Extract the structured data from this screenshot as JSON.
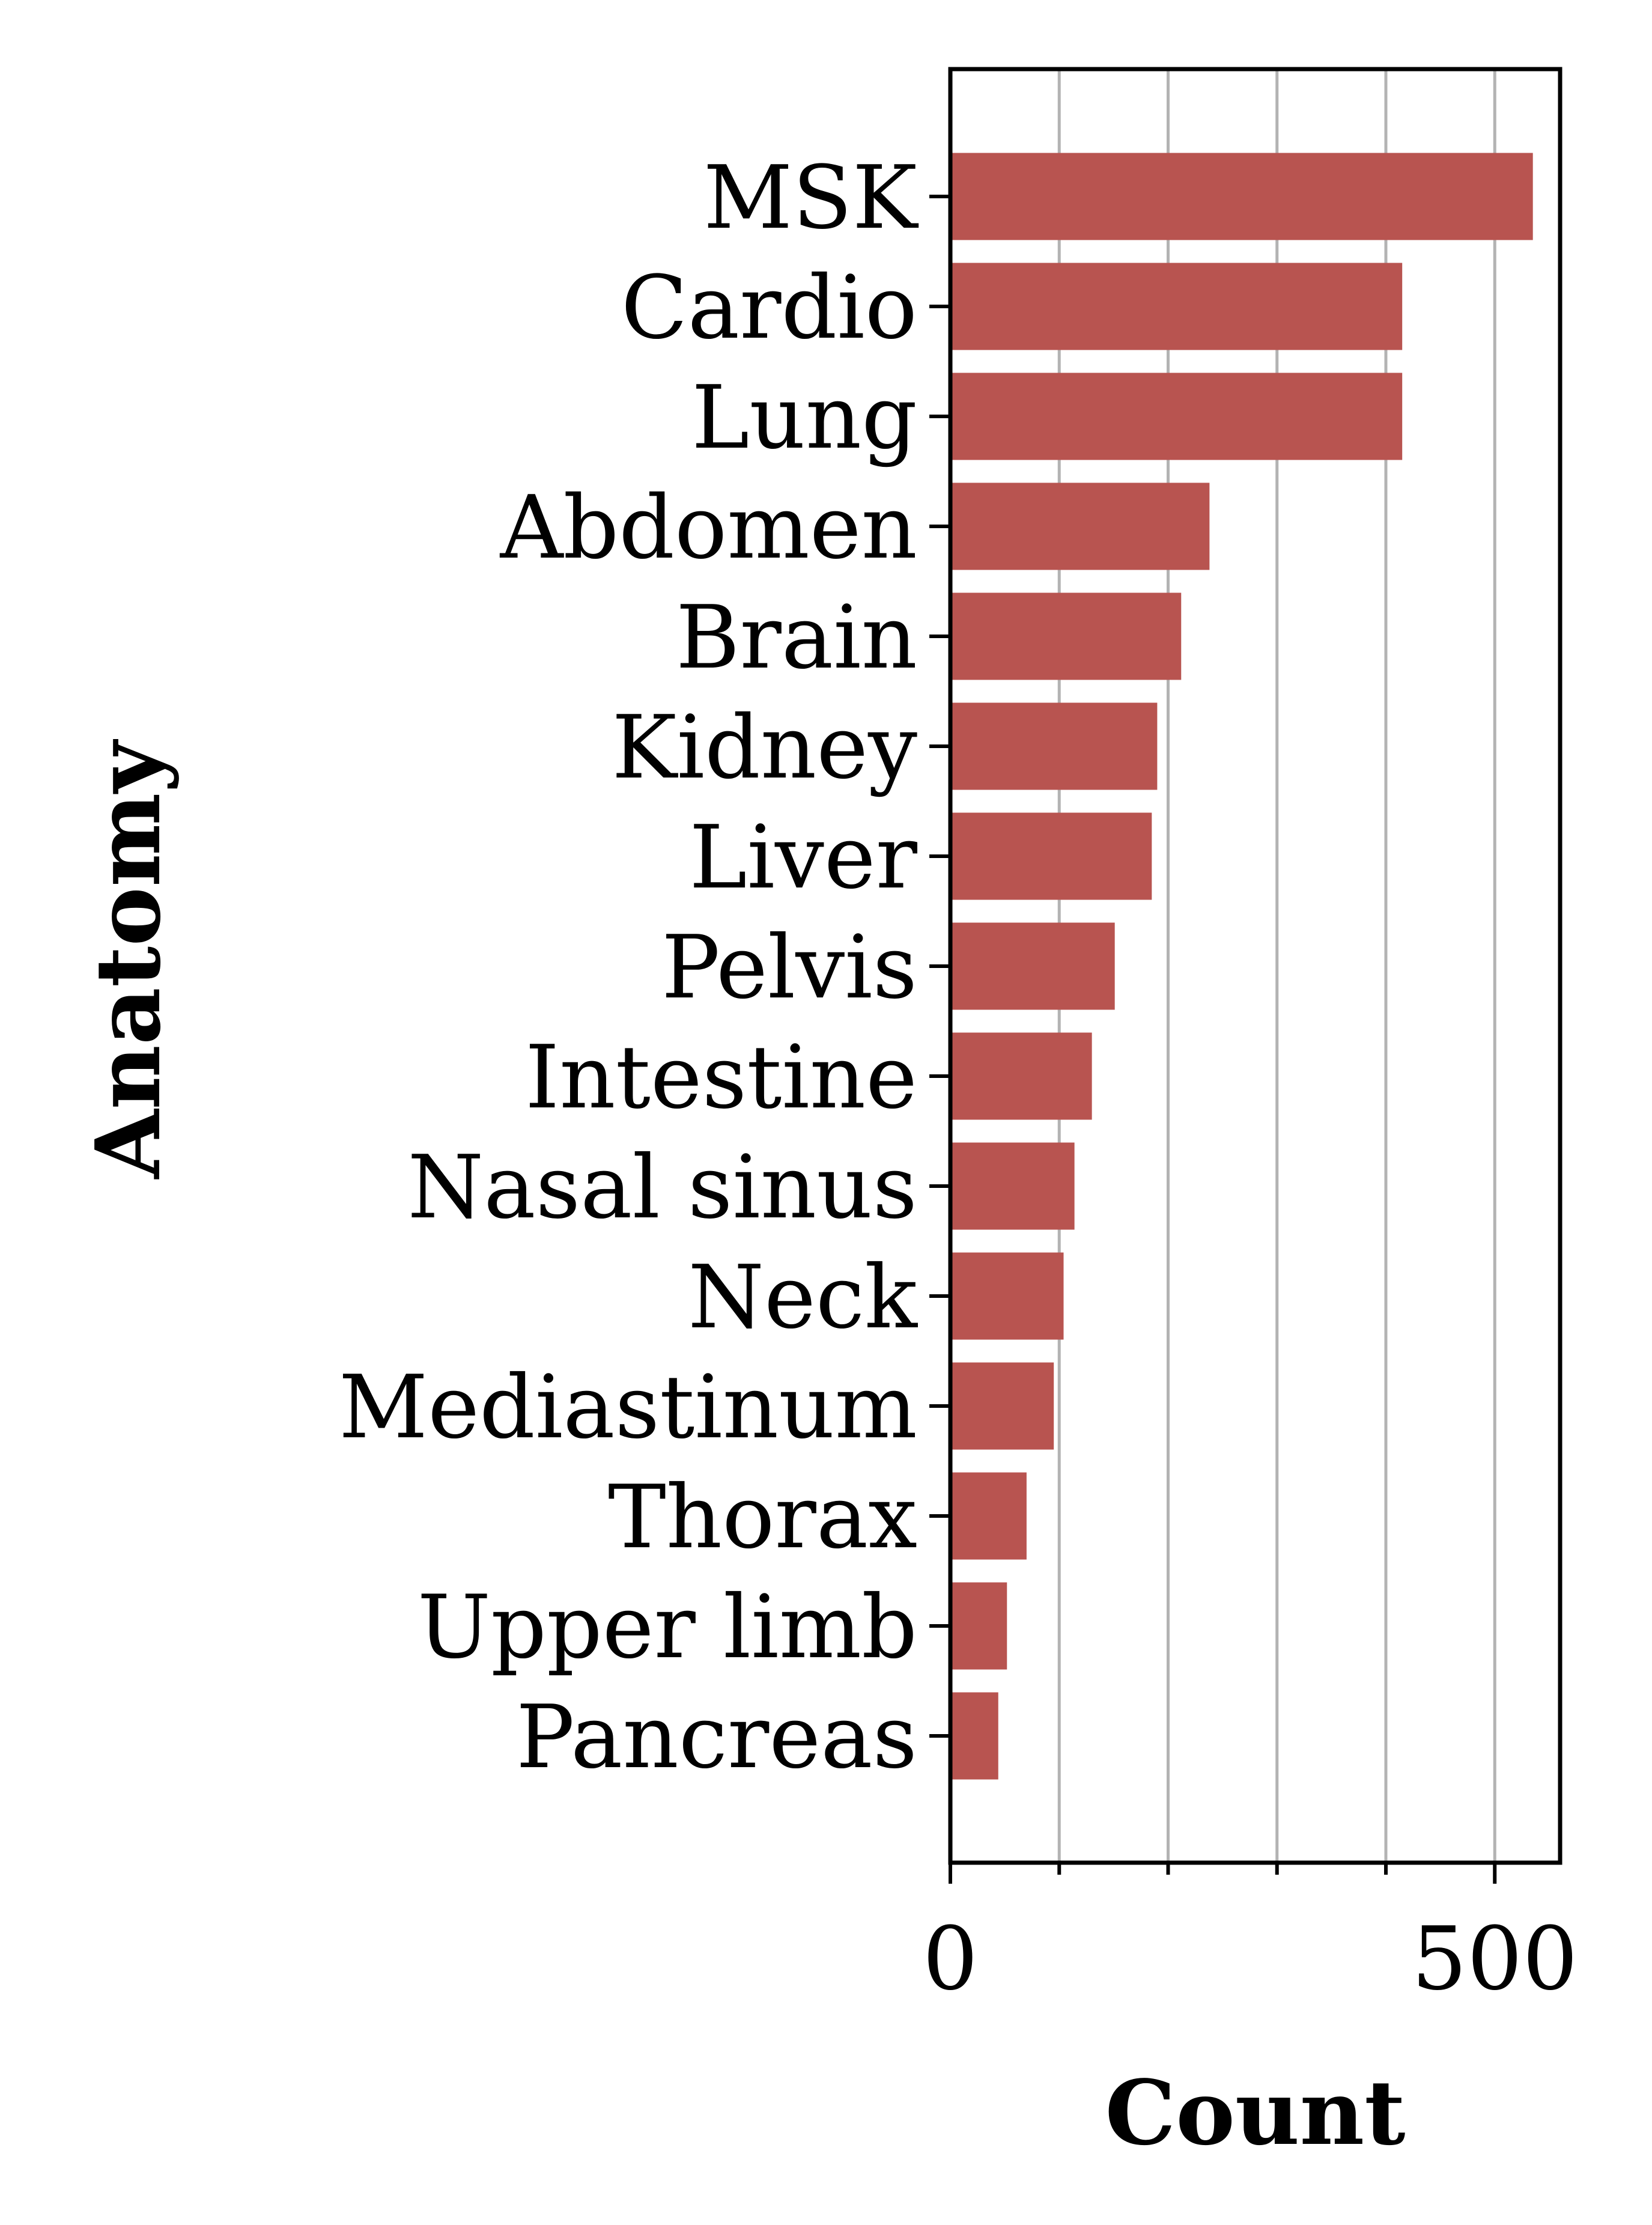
{
  "chart_data": {
    "type": "bar",
    "orientation": "horizontal",
    "title": "",
    "xlabel": "Count",
    "ylabel": "Anatomy",
    "categories": [
      "MSK",
      "Cardio",
      "Lung",
      "Abdomen",
      "Brain",
      "Kidney",
      "Liver",
      "Pelvis",
      "Intestine",
      "Nasal sinus",
      "Neck",
      "Mediastinum",
      "Thorax",
      "Upper limb",
      "Pancreas"
    ],
    "values": [
      535,
      415,
      415,
      238,
      212,
      190,
      185,
      151,
      130,
      114,
      104,
      95,
      70,
      52,
      44
    ],
    "xlim": [
      0,
      560
    ],
    "x_major_ticks": [
      0,
      500
    ],
    "x_minor_ticks": [
      100,
      200,
      300,
      400
    ],
    "x_tick_labels": [
      "0",
      "500"
    ],
    "grid": "x",
    "bar_color": "#b85450",
    "grid_color": "#b3b3b3"
  }
}
